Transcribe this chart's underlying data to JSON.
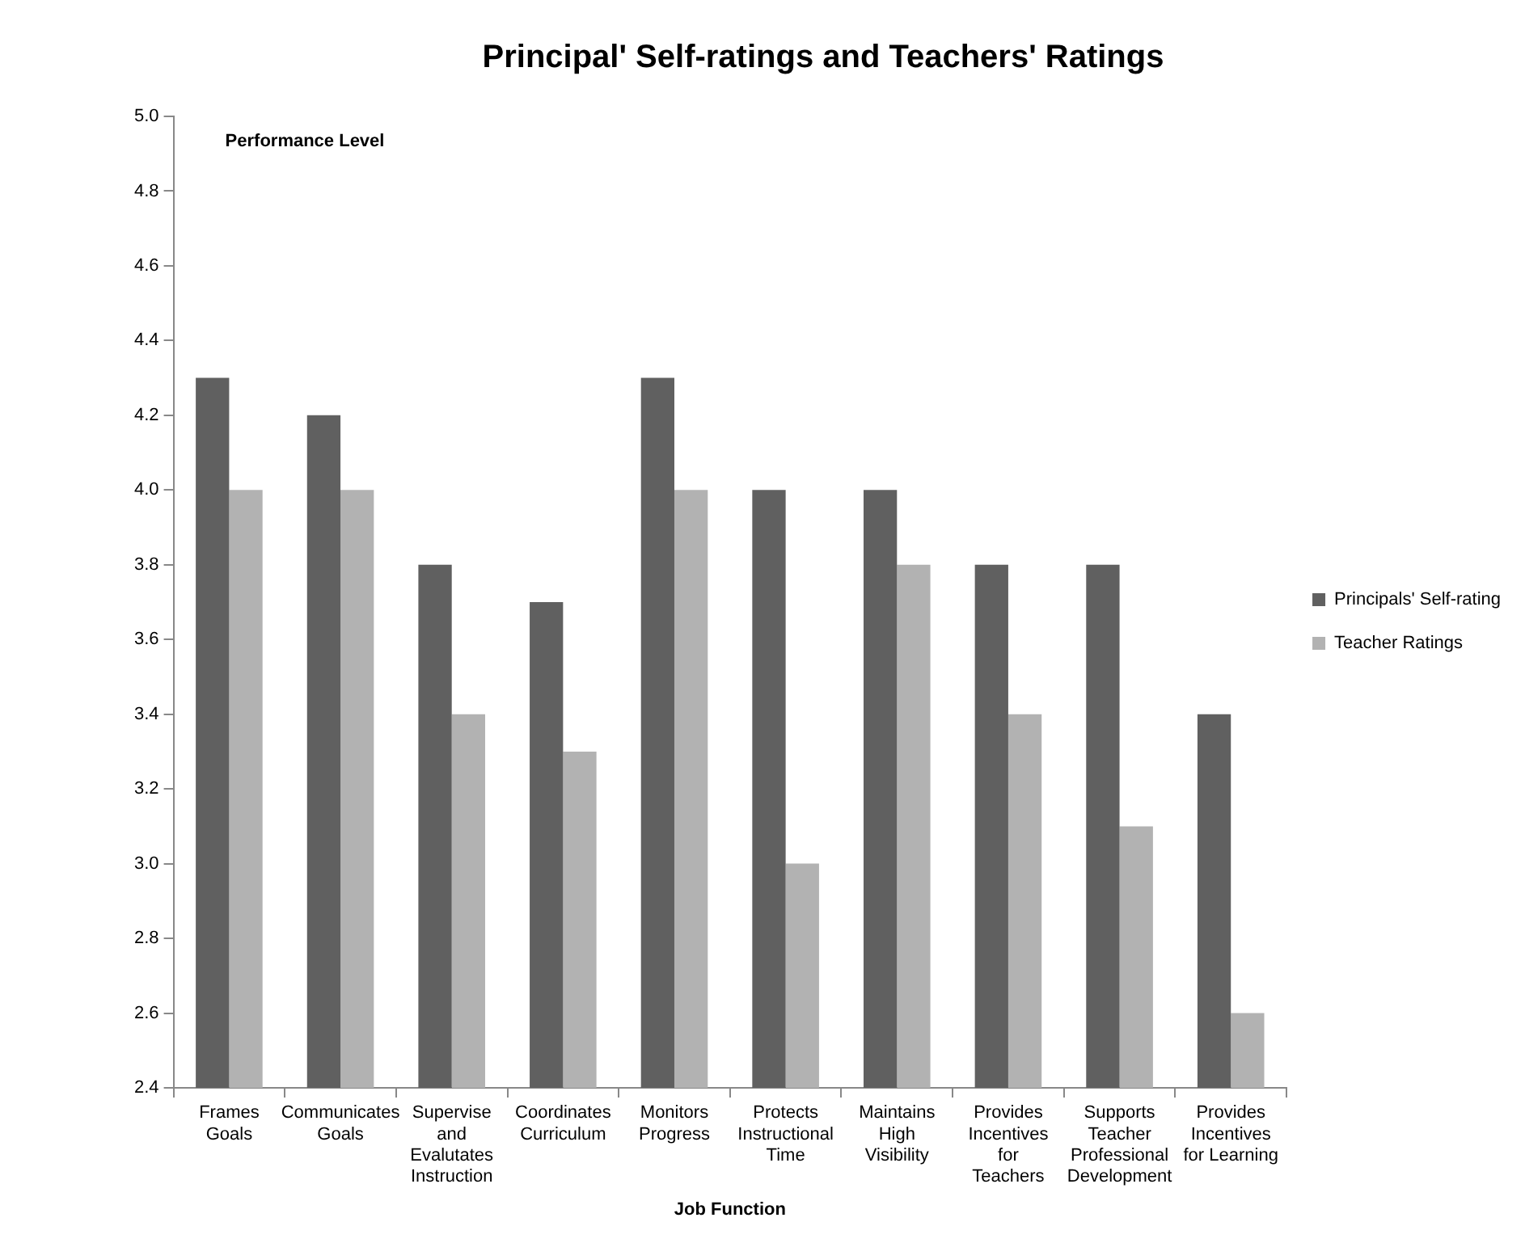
{
  "chart_data": {
    "type": "bar",
    "title": "Principal' Self-ratings and Teachers' Ratings",
    "xlabel": "Job Function",
    "ylabel": "Performance Level",
    "categories": [
      "Frames Goals",
      "Communicates Goals",
      "Supervise and Evalutates Instruction",
      "Coordinates Curriculum",
      "Monitors Progress",
      "Protects Instructional Time",
      "Maintains High Visibility",
      "Provides Incentives for Teachers",
      "Supports Teacher Professional Development",
      "Provides Incentives for Learning"
    ],
    "series": [
      {
        "name": "Principals' Self-rating",
        "color": "#606060",
        "values": [
          4.3,
          4.2,
          3.8,
          3.7,
          4.3,
          4.0,
          4.0,
          3.8,
          3.8,
          3.4
        ]
      },
      {
        "name": "Teacher Ratings",
        "color": "#b2b2b2",
        "values": [
          4.0,
          4.0,
          3.4,
          3.3,
          4.0,
          3.0,
          3.8,
          3.4,
          3.1,
          2.6
        ]
      }
    ],
    "ylim": [
      2.4,
      5.0
    ],
    "yticks": [
      2.4,
      2.6,
      2.8,
      {
        "value": 3.0,
        "label": "3.0"
      },
      3.2,
      3.4,
      3.6,
      3.8,
      {
        "value": 4.0,
        "label": "4.0"
      },
      4.2,
      4.4,
      4.6,
      4.8,
      {
        "value": 5.0,
        "label": "5.0"
      }
    ],
    "grid": false,
    "legend": "right"
  }
}
